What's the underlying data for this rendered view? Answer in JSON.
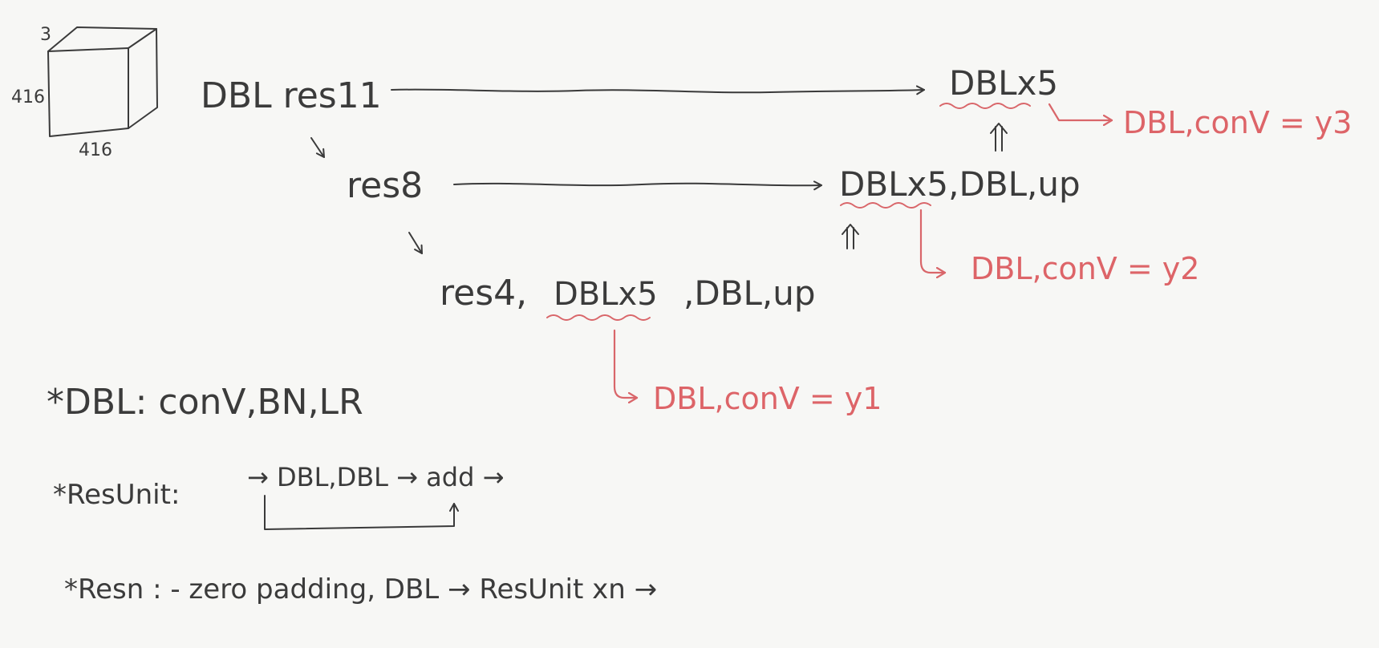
{
  "cube": {
    "depth_label": "3",
    "height_label": "416",
    "width_label": "416"
  },
  "rows": {
    "row1": {
      "left": "DBL res11",
      "right": "DBLx5"
    },
    "row2": {
      "left": "res8",
      "right": "DBLx5,DBL,up"
    },
    "row3": {
      "left": "res4,",
      "middle": "DBLx5",
      "right": ",DBL,up"
    }
  },
  "outputs": {
    "y3": "DBL,conV = y3",
    "y2": "DBL,conV = y2",
    "y1": "DBL,conV = y1"
  },
  "legend": {
    "dbl": "*DBL: conV,BN,LR",
    "resunit_label": "*ResUnit:",
    "resunit_flow": "→ DBL,DBL → add →",
    "resn": "*Resn : - zero padding, DBL → ResUnit xn →"
  },
  "colors": {
    "ink": "#3a3a3a",
    "accent": "#d9666a",
    "background": "#f7f7f5"
  }
}
